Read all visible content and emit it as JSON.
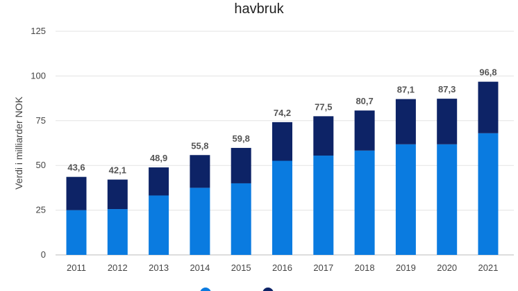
{
  "chart_data": {
    "type": "bar",
    "stacked": true,
    "title": "havbruk",
    "xlabel": "",
    "ylabel": "Verdi i milliarder NOK",
    "ylim": [
      0,
      125
    ],
    "yticks": [
      0,
      25,
      50,
      75,
      100,
      125
    ],
    "grid": true,
    "legend_position": "bottom",
    "categories": [
      "2011",
      "2012",
      "2013",
      "2014",
      "2015",
      "2016",
      "2017",
      "2018",
      "2019",
      "2020",
      "2021"
    ],
    "series": [
      {
        "values": [
          25.0,
          25.6,
          33.2,
          37.5,
          40.0,
          52.6,
          55.5,
          58.3,
          61.8,
          61.8,
          68.0
        ],
        "color": "#0a7be0"
      },
      {
        "values": [
          18.6,
          16.5,
          15.7,
          18.3,
          19.8,
          21.6,
          22.0,
          22.4,
          25.3,
          25.5,
          28.8
        ],
        "color": "#0d2366"
      }
    ],
    "totals": [
      "43,6",
      "42,1",
      "48,9",
      "55,8",
      "59,8",
      "74,2",
      "77,5",
      "80,7",
      "87,1",
      "87,3",
      "96,8"
    ]
  }
}
